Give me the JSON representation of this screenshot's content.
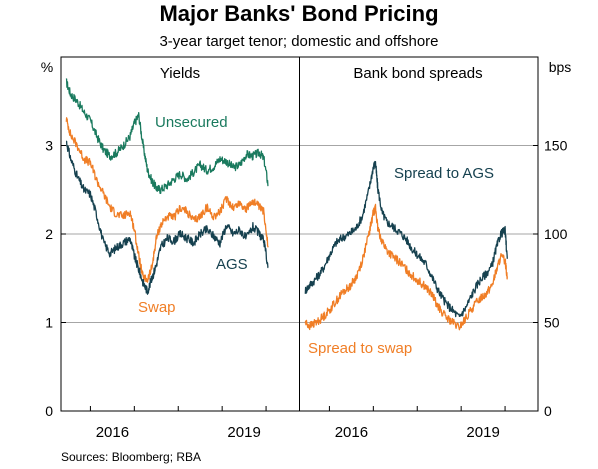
{
  "title": "Major Banks' Bond Pricing",
  "subtitle": "3-year target tenor; domestic and offshore",
  "source": "Sources:   Bloomberg; RBA",
  "colors": {
    "teal": "#1a7a5e",
    "navy": "#16414f",
    "orange": "#f07e26",
    "grid": "#a6a6a6"
  },
  "chart_data": [
    {
      "type": "line",
      "panel_title": "Yields",
      "ylabel": "%",
      "ylim": [
        0,
        4
      ],
      "yticks": [
        0,
        1,
        2,
        3
      ],
      "xlim": [
        2014.33,
        2019.75
      ],
      "xticks": [
        2016,
        2019
      ],
      "xtick_labels": [
        "2016",
        "2019"
      ],
      "series": [
        {
          "name": "Unsecured",
          "color": "#1a7a5e",
          "x": [
            2014.45,
            2014.55,
            2014.7,
            2014.85,
            2015.0,
            2015.15,
            2015.3,
            2015.45,
            2015.6,
            2015.75,
            2015.9,
            2016.0,
            2016.1,
            2016.2,
            2016.3,
            2016.4,
            2016.5,
            2016.6,
            2016.75,
            2016.9,
            2017.05,
            2017.2,
            2017.35,
            2017.5,
            2017.65,
            2017.8,
            2017.95,
            2018.1,
            2018.25,
            2018.4,
            2018.55,
            2018.7,
            2018.85,
            2018.95,
            2019.05
          ],
          "y": [
            3.72,
            3.58,
            3.5,
            3.38,
            3.28,
            3.1,
            2.95,
            2.88,
            2.92,
            3.0,
            3.1,
            3.25,
            3.34,
            3.0,
            2.72,
            2.6,
            2.52,
            2.5,
            2.55,
            2.62,
            2.68,
            2.62,
            2.7,
            2.78,
            2.72,
            2.76,
            2.85,
            2.82,
            2.75,
            2.78,
            2.9,
            2.88,
            2.92,
            2.85,
            2.55
          ]
        },
        {
          "name": "Swap",
          "color": "#f07e26",
          "x": [
            2014.45,
            2014.55,
            2014.7,
            2014.85,
            2015.0,
            2015.15,
            2015.3,
            2015.45,
            2015.6,
            2015.75,
            2015.9,
            2016.0,
            2016.1,
            2016.2,
            2016.3,
            2016.4,
            2016.5,
            2016.6,
            2016.75,
            2016.9,
            2017.05,
            2017.2,
            2017.35,
            2017.5,
            2017.65,
            2017.8,
            2017.95,
            2018.1,
            2018.25,
            2018.4,
            2018.55,
            2018.7,
            2018.85,
            2018.95,
            2019.05
          ],
          "y": [
            3.3,
            3.12,
            3.0,
            2.85,
            2.8,
            2.6,
            2.45,
            2.3,
            2.22,
            2.2,
            2.25,
            2.05,
            1.75,
            1.5,
            1.48,
            1.62,
            1.95,
            2.1,
            2.2,
            2.18,
            2.3,
            2.25,
            2.15,
            2.2,
            2.3,
            2.2,
            2.25,
            2.4,
            2.3,
            2.35,
            2.28,
            2.38,
            2.3,
            2.25,
            1.85
          ]
        },
        {
          "name": "AGS",
          "color": "#16414f",
          "x": [
            2014.45,
            2014.55,
            2014.7,
            2014.85,
            2015.0,
            2015.15,
            2015.3,
            2015.45,
            2015.6,
            2015.75,
            2015.9,
            2016.0,
            2016.1,
            2016.2,
            2016.3,
            2016.4,
            2016.5,
            2016.6,
            2016.75,
            2016.9,
            2017.05,
            2017.2,
            2017.35,
            2017.5,
            2017.65,
            2017.8,
            2017.95,
            2018.1,
            2018.25,
            2018.4,
            2018.55,
            2018.7,
            2018.85,
            2018.95,
            2019.05
          ],
          "y": [
            3.05,
            2.85,
            2.65,
            2.5,
            2.45,
            2.2,
            1.9,
            1.78,
            1.85,
            1.9,
            1.95,
            1.75,
            1.6,
            1.45,
            1.35,
            1.5,
            1.65,
            1.85,
            1.95,
            1.92,
            2.0,
            1.95,
            1.9,
            2.0,
            2.05,
            1.98,
            1.9,
            2.1,
            2.0,
            2.05,
            1.95,
            2.08,
            2.0,
            1.92,
            1.62
          ]
        }
      ]
    },
    {
      "type": "line",
      "panel_title": "Bank bond spreads",
      "ylabel": "bps",
      "ylim": [
        0,
        200
      ],
      "yticks": [
        0,
        50,
        100,
        150
      ],
      "xlim": [
        2014.33,
        2019.75
      ],
      "xticks": [
        2016,
        2019
      ],
      "xtick_labels": [
        "2016",
        "2019"
      ],
      "series": [
        {
          "name": "Spread to AGS",
          "color": "#16414f",
          "x": [
            2014.45,
            2014.55,
            2014.7,
            2014.85,
            2015.0,
            2015.15,
            2015.3,
            2015.45,
            2015.6,
            2015.75,
            2015.9,
            2016.0,
            2016.05,
            2016.1,
            2016.2,
            2016.3,
            2016.45,
            2016.6,
            2016.75,
            2016.9,
            2017.05,
            2017.2,
            2017.35,
            2017.5,
            2017.65,
            2017.8,
            2017.95,
            2018.1,
            2018.25,
            2018.4,
            2018.55,
            2018.7,
            2018.8,
            2018.9,
            2019.0,
            2019.05
          ],
          "y": [
            68,
            71,
            75,
            80,
            88,
            95,
            98,
            100,
            103,
            110,
            125,
            138,
            140,
            126,
            112,
            107,
            104,
            101,
            97,
            91,
            87,
            83,
            75,
            67,
            61,
            57,
            53,
            58,
            66,
            73,
            77,
            82,
            92,
            100,
            102,
            86
          ]
        },
        {
          "name": "Spread to swap",
          "color": "#f07e26",
          "x": [
            2014.45,
            2014.55,
            2014.7,
            2014.85,
            2015.0,
            2015.15,
            2015.3,
            2015.45,
            2015.6,
            2015.75,
            2015.9,
            2016.0,
            2016.05,
            2016.1,
            2016.2,
            2016.3,
            2016.45,
            2016.6,
            2016.75,
            2016.9,
            2017.05,
            2017.2,
            2017.35,
            2017.5,
            2017.65,
            2017.8,
            2017.95,
            2018.1,
            2018.25,
            2018.4,
            2018.55,
            2018.7,
            2018.8,
            2018.9,
            2019.0,
            2019.05
          ],
          "y": [
            50,
            48,
            50,
            53,
            57,
            62,
            67,
            70,
            75,
            85,
            100,
            112,
            115,
            103,
            96,
            91,
            87,
            84,
            80,
            76,
            73,
            70,
            65,
            58,
            53,
            50,
            47,
            52,
            58,
            63,
            66,
            71,
            79,
            87,
            85,
            76
          ]
        }
      ]
    }
  ],
  "labels": [
    "Unsecured",
    "Swap",
    "AGS",
    "Spread to AGS",
    "Spread to swap"
  ]
}
